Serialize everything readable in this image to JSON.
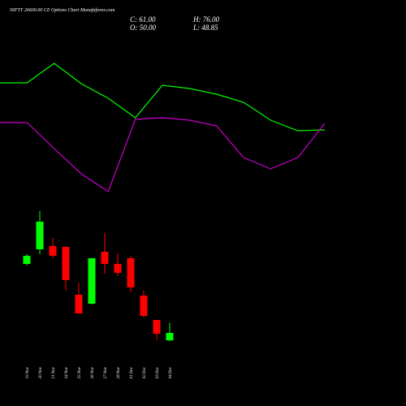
{
  "header": {
    "title": "NIFTY 26600.00 CE Options Chart Munafaforex.com",
    "close": "C: 61.00",
    "high": "H: 76.00",
    "open": "O: 50.00",
    "low": "L: 48.85"
  },
  "chart_data": [
    {
      "type": "line",
      "ylim": [
        0,
        200
      ],
      "series": [
        {
          "color": "#00ff00",
          "values": [
            158,
            158,
            182,
            157,
            139,
            115,
            155,
            151,
            144,
            134,
            112,
            99,
            100
          ]
        },
        {
          "color": "#cc00cc",
          "values": [
            109,
            109,
            77,
            46,
            24,
            113,
            115,
            112,
            105,
            66,
            52,
            66,
            108
          ]
        }
      ]
    },
    {
      "type": "candlestick",
      "ylim": [
        1,
        253
      ],
      "up_color": "#00ff00",
      "down_color": "#ff0000",
      "categories": [
        "19 Nov",
        "20 Nov",
        "21 Nov",
        "24 Nov",
        "25 Nov",
        "26 Nov",
        "27 Nov",
        "28 Nov",
        "01 Dec",
        "02 Dec",
        "03 Dec",
        "04 Dec"
      ],
      "open": [
        163,
        184.6,
        189.4,
        188.2,
        117.4,
        104.2,
        181,
        163,
        171.4,
        116.2,
        80.2,
        50
      ],
      "high": [
        177.4,
        241,
        201.4,
        188.2,
        135.4,
        171.4,
        208.6,
        178.6,
        175,
        123.4,
        80.2,
        76
      ],
      "low": [
        160.6,
        177.4,
        171.4,
        123.4,
        89.8,
        103,
        148.6,
        145,
        121,
        83.8,
        51.4,
        48.85
      ],
      "close": [
        175,
        225.4,
        175,
        139,
        89.8,
        171.4,
        163,
        149.8,
        128.2,
        86.2,
        59.8,
        61
      ]
    }
  ]
}
